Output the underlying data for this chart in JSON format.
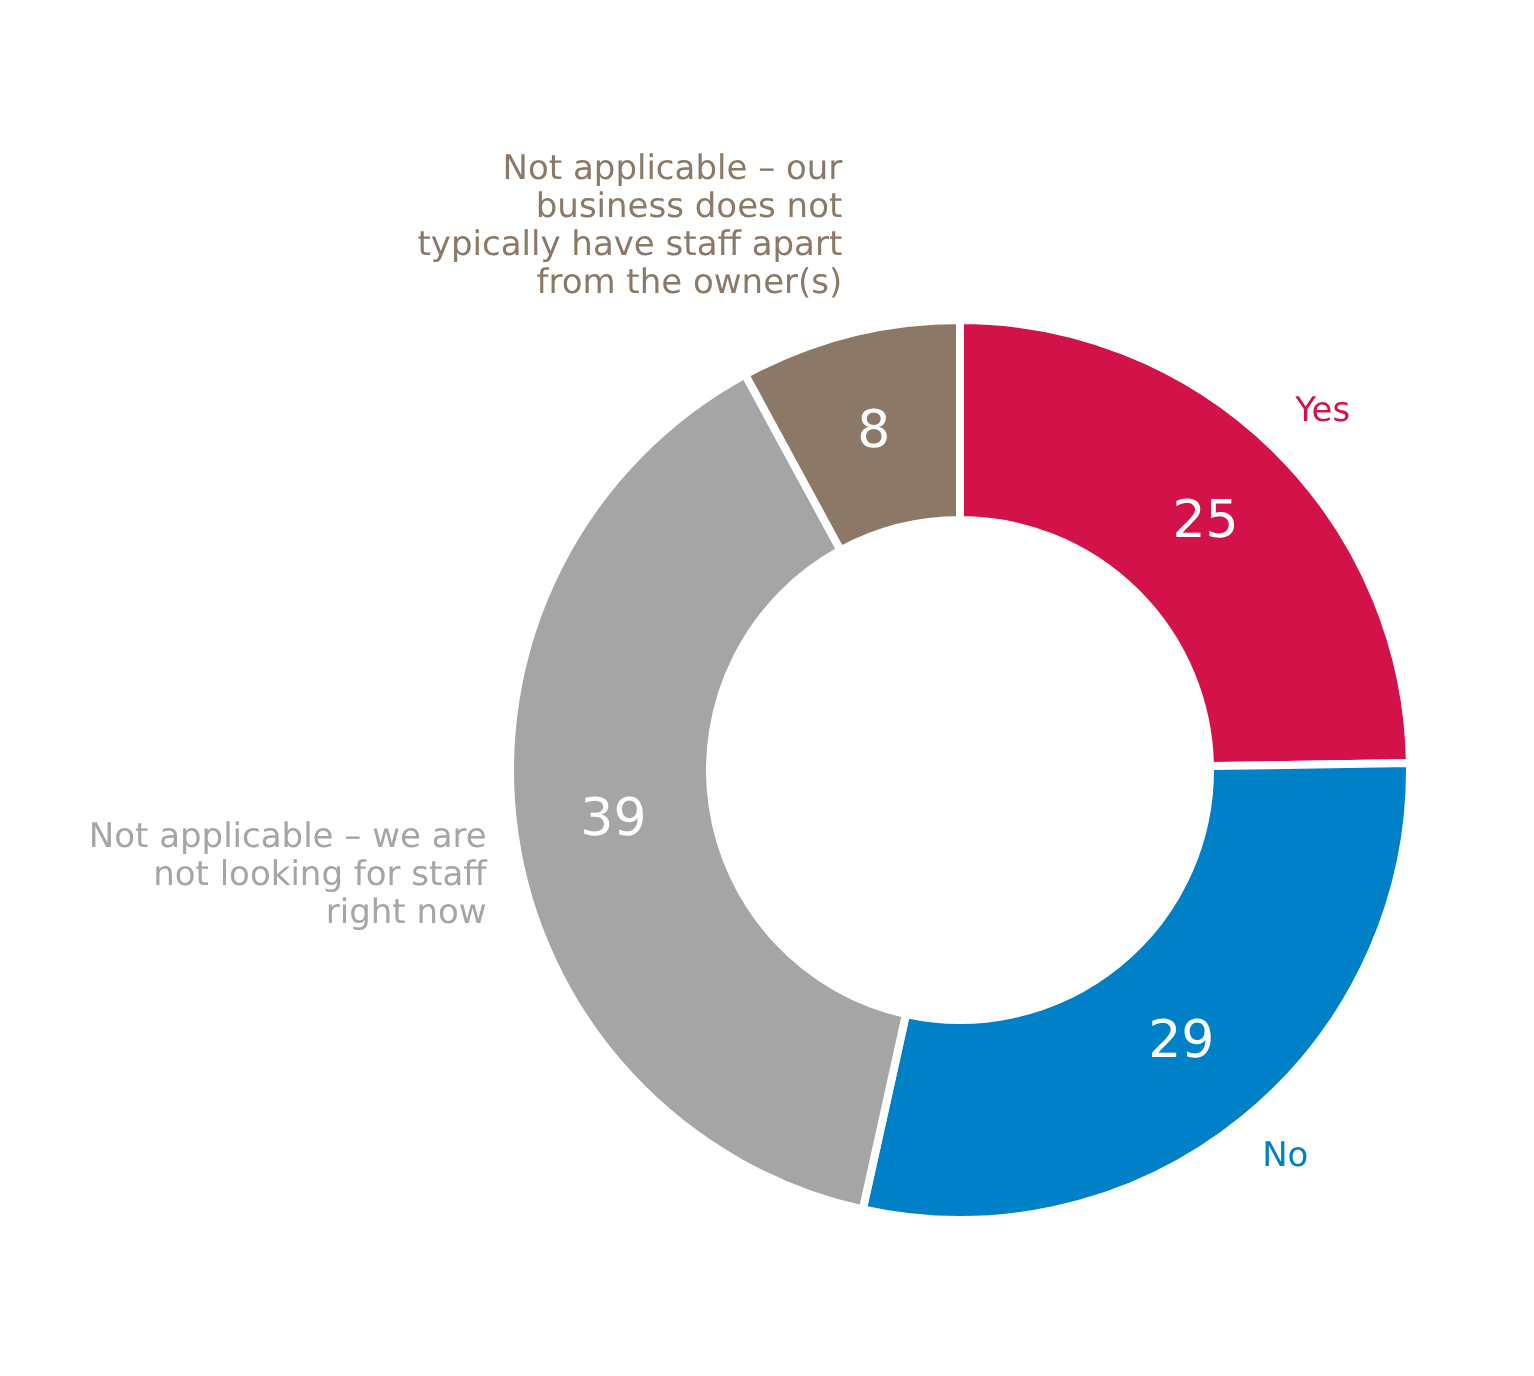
{
  "chart_data": {
    "type": "donut",
    "categories": [
      "Yes",
      "No",
      "Not applicable – we are not looking for staff right now",
      "Not applicable – our business does not typically have staff apart from the owner(s)"
    ],
    "values": [
      25,
      29,
      39,
      8
    ],
    "colors": [
      "#d4124a",
      "#0080c6",
      "#a5a5a5",
      "#8b7866"
    ],
    "data_labels": true
  }
}
